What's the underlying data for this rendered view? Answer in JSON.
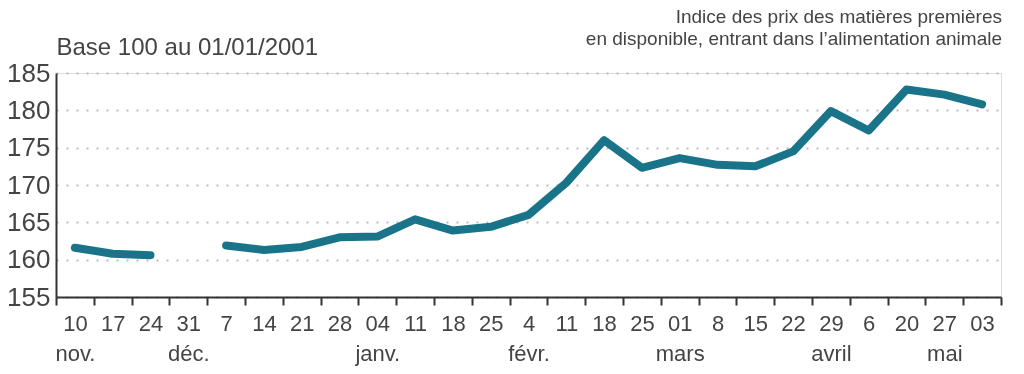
{
  "chart_data": {
    "type": "line",
    "title": "Indice des prix des matières premières\nen disponible, entrant dans l’alimentation animale",
    "ylabel": "Base 100 au 01/01/2001",
    "categories": [
      "10\nnov.",
      "17",
      "24",
      "31\ndéc.",
      "7",
      "14",
      "21",
      "28",
      "04\njanv.",
      "11",
      "18",
      "25",
      "4\nfévr.",
      "11",
      "18",
      "25",
      "01\nmars",
      "8",
      "15",
      "22",
      "29\navril",
      "6",
      "20",
      "27\nmai",
      "03"
    ],
    "series": [
      {
        "color": "#1a7489",
        "values": [
          161.6,
          160.8,
          160.6,
          null,
          161.9,
          161.3,
          161.7,
          163.0,
          163.1,
          165.4,
          163.9,
          164.4,
          166.0,
          170.3,
          176.0,
          172.3,
          173.6,
          172.7,
          172.5,
          174.5,
          179.9,
          177.3,
          182.8,
          182.1,
          180.8
        ]
      }
    ],
    "ylim": [
      155,
      185
    ],
    "yticks": [
      155,
      160,
      165,
      170,
      175,
      180,
      185
    ],
    "grid": "y",
    "line_style": "solid"
  }
}
